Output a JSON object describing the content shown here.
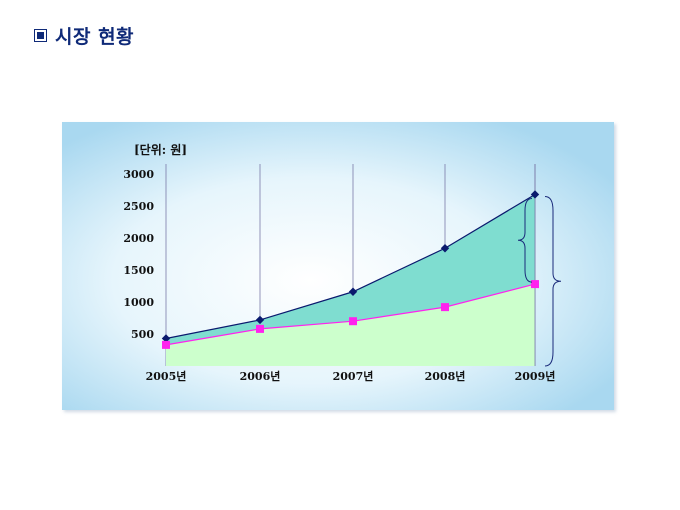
{
  "header": {
    "title_icon": "square-bullet-icon",
    "title": "시장 현황"
  },
  "chart_data": {
    "type": "area",
    "unit_label": "[단위: 원]",
    "categories": [
      "2005년",
      "2006년",
      "2007년",
      "2008년",
      "2009년"
    ],
    "y_ticks": [
      "500",
      "1000",
      "1500",
      "2000",
      "2500",
      "3000"
    ],
    "ylim": [
      0,
      3000
    ],
    "series": [
      {
        "values": [
          430,
          720,
          1160,
          1840,
          2680
        ],
        "color": "#0a1a6e",
        "fill": "#7fddd0",
        "marker": "diamond"
      },
      {
        "values": [
          330,
          580,
          700,
          920,
          1280
        ],
        "color": "#ff22ee",
        "fill": "#ccffcc",
        "marker": "square"
      }
    ],
    "grid": "vertical",
    "colors": {
      "background_center": "#ffffff",
      "background_edge": "#a9d8f0",
      "gridline": "#7a7aa8",
      "brace": "#1a2a7a"
    }
  }
}
